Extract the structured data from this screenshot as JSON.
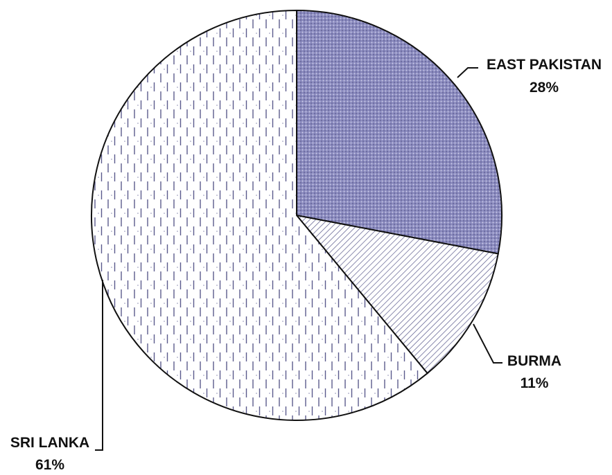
{
  "chart_data": {
    "type": "pie",
    "slices": [
      {
        "label": "EAST PAKISTAN",
        "value": 28,
        "value_label": "28%",
        "fill": "#8b8bbf",
        "pattern": "dots"
      },
      {
        "label": "BURMA",
        "value": 11,
        "value_label": "11%",
        "fill": "#ffffff",
        "pattern": "diagonal-hatch"
      },
      {
        "label": "SRI LANKA",
        "value": 61,
        "value_label": "61%",
        "fill": "#ffffff",
        "pattern": "dashed-vertical"
      }
    ],
    "start_position": "12 o'clock",
    "direction": "clockwise",
    "legend": "none (callout labels with leader lines)",
    "colors": {
      "outline": "#111111",
      "east_pakistan_base": "#8b8bbf",
      "pattern_ink": "#5a5a8c"
    }
  }
}
